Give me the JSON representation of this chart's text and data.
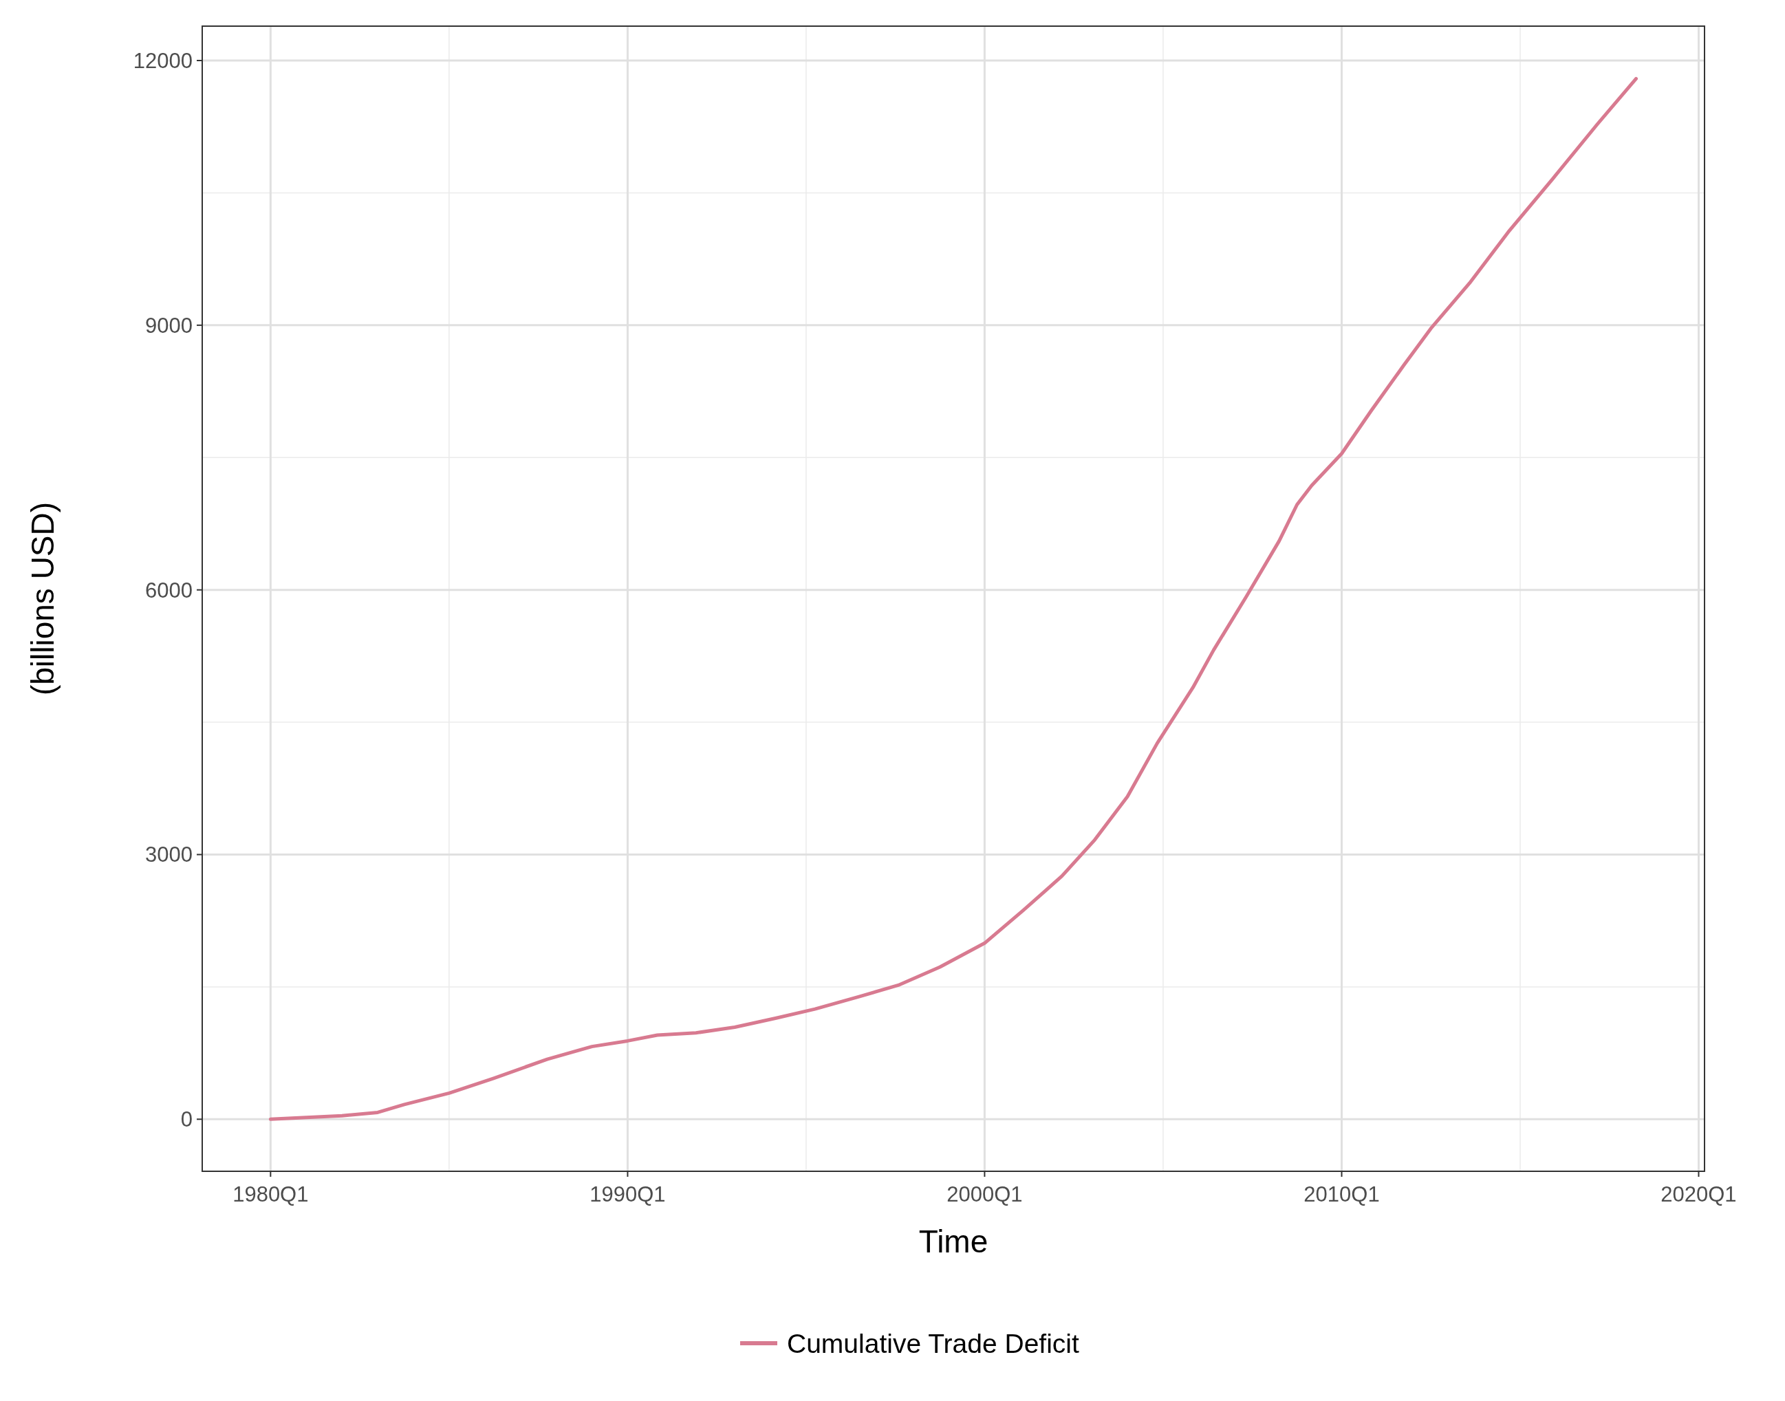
{
  "chart_data": {
    "type": "line",
    "xlabel": "Time",
    "ylabel": "(billions USD)",
    "xlim": [
      "1978-02",
      "2020-03"
    ],
    "ylim": [
      -590,
      12390
    ],
    "xticks": [
      {
        "value": "1980-01",
        "label": "1980Q1"
      },
      {
        "value": "1990-01",
        "label": "1990Q1"
      },
      {
        "value": "2000-01",
        "label": "2000Q1"
      },
      {
        "value": "2010-01",
        "label": "2010Q1"
      },
      {
        "value": "2020-01",
        "label": "2020Q1"
      }
    ],
    "yticks": [
      0,
      3000,
      6000,
      9000,
      12000
    ],
    "grid": true,
    "legend": "bottom",
    "line_style": "solid",
    "marker": "none",
    "series": [
      {
        "name": "Cumulative Trade Deficit",
        "color": "#d87a90",
        "x": [
          "1980-01",
          "1982-01",
          "1983-01",
          "1983-10",
          "1985-01",
          "1986-04",
          "1987-10",
          "1989-01",
          "1990-01",
          "1990-11",
          "1991-12",
          "1993-01",
          "1994-03",
          "1995-04",
          "1996-07",
          "1997-08",
          "1998-10",
          "2000-01",
          "2001-02",
          "2002-03",
          "2003-02",
          "2004-01",
          "2004-11",
          "2005-11",
          "2006-06",
          "2007-05",
          "2008-04",
          "2008-10",
          "2009-03",
          "2010-01",
          "2010-11",
          "2011-10",
          "2012-07",
          "2013-08",
          "2014-09",
          "2015-12",
          "2017-03",
          "2018-04"
        ],
        "values": [
          0,
          40,
          77,
          167,
          296,
          464,
          680,
          824,
          888,
          953,
          979,
          1043,
          1146,
          1249,
          1391,
          1519,
          1725,
          1996,
          2369,
          2755,
          3167,
          3657,
          4262,
          4893,
          5318,
          5923,
          6554,
          6966,
          7185,
          7545,
          8034,
          8550,
          8962,
          9477,
          10056,
          10661,
          11279,
          11794
        ]
      }
    ]
  }
}
